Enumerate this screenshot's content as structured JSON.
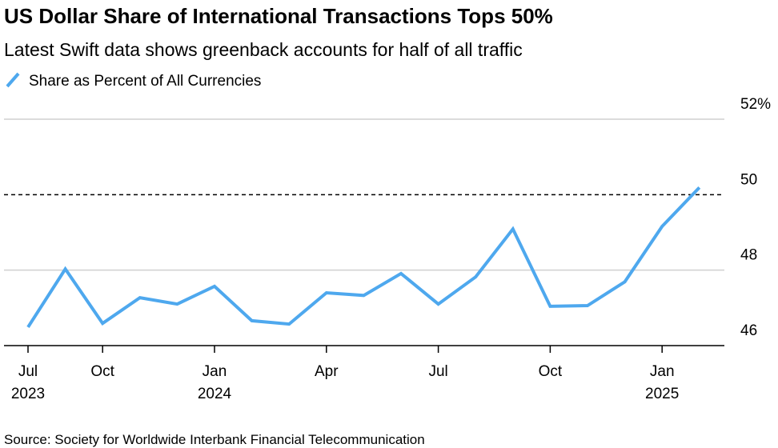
{
  "chart_data": {
    "type": "line",
    "title": "US Dollar Share of International Transactions Tops 50%",
    "subtitle": "Latest Swift data shows greenback accounts for half of all traffic",
    "source": "Source: Society for Worldwide Interbank Financial Telecommunication",
    "categories": [
      "Jul",
      null,
      "Oct",
      null,
      null,
      "Jan",
      null,
      null,
      "Apr",
      null,
      null,
      "Jul",
      null,
      null,
      "Oct",
      null,
      null,
      "Jan",
      null
    ],
    "category_years": [
      "2023",
      null,
      null,
      null,
      null,
      "2024",
      null,
      null,
      null,
      null,
      null,
      null,
      null,
      null,
      null,
      null,
      null,
      "2025",
      null
    ],
    "series": [
      {
        "name": "Share as Percent of All Currencies",
        "color": "#4ea8ee",
        "values": [
          46.49,
          48.03,
          46.59,
          47.27,
          47.1,
          47.57,
          46.66,
          46.57,
          47.4,
          47.33,
          47.91,
          47.1,
          47.82,
          49.09,
          47.04,
          47.06,
          47.69,
          49.16,
          50.19
        ]
      }
    ],
    "ylim": [
      46,
      52
    ],
    "yticks": [
      46,
      48,
      50,
      {
        "value": 52,
        "label": "52%"
      }
    ],
    "reference_line": 50,
    "grid": true
  }
}
